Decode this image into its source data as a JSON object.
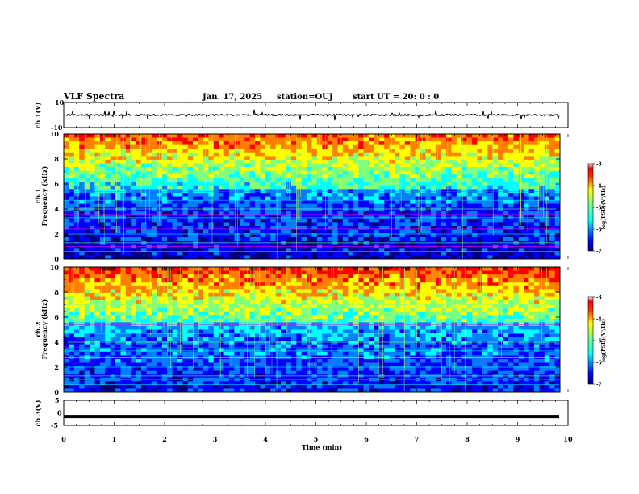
{
  "header": {
    "title": "VLF Spectra",
    "date": "Jan. 17, 2025",
    "station": "station=OUJ",
    "start": "start UT =   20: 0  : 0"
  },
  "chart_data": [
    {
      "type": "line",
      "panel": "ch1-waveform",
      "ylabel": "ch.1(V)",
      "ylim": [
        -10,
        10
      ],
      "yticks": [
        "10",
        "-10"
      ],
      "xlim": [
        0,
        10
      ],
      "baseline": 0,
      "color": "#000000"
    },
    {
      "type": "heatmap",
      "panel": "ch1-spectrogram",
      "ylabel": [
        "ch.1",
        "Frequency (kHz)"
      ],
      "ylim": [
        0,
        10
      ],
      "yticks": [
        "0",
        "2",
        "4",
        "6",
        "8",
        "10"
      ],
      "xlim": [
        0,
        10
      ],
      "colorbar": {
        "label": "log(PSD)(V²/Hz)",
        "range": [
          -7,
          -3
        ],
        "ticks": [
          "-3",
          "-4",
          "-5",
          "-6",
          "-7"
        ]
      }
    },
    {
      "type": "heatmap",
      "panel": "ch2-spectrogram",
      "ylabel": [
        "ch.2",
        "Frequency (kHz)"
      ],
      "ylim": [
        0,
        10
      ],
      "yticks": [
        "0",
        "2",
        "4",
        "6",
        "8",
        "10"
      ],
      "xlim": [
        0,
        10
      ],
      "colorbar": {
        "label": "log(PSD)(V²/Hz)",
        "range": [
          -7,
          -3
        ],
        "ticks": [
          "-3",
          "-4",
          "-5",
          "-6",
          "-7"
        ]
      }
    },
    {
      "type": "line",
      "panel": "ch3-waveform",
      "ylabel": "ch.3(V)",
      "ylim": [
        -5,
        5
      ],
      "yticks": [
        "5",
        "0",
        "-5"
      ],
      "xlim": [
        0,
        10
      ],
      "baseline": -1.5,
      "color": "#000000"
    }
  ],
  "xaxis": {
    "label": "Time (min)",
    "ticks": [
      "0",
      "1",
      "2",
      "3",
      "4",
      "5",
      "6",
      "7",
      "8",
      "9",
      "10"
    ]
  },
  "colormap": [
    "#00007f",
    "#0000ff",
    "#007fff",
    "#00ffff",
    "#7fff7f",
    "#ffff00",
    "#ff7f00",
    "#ff0000",
    "#7f0000"
  ]
}
